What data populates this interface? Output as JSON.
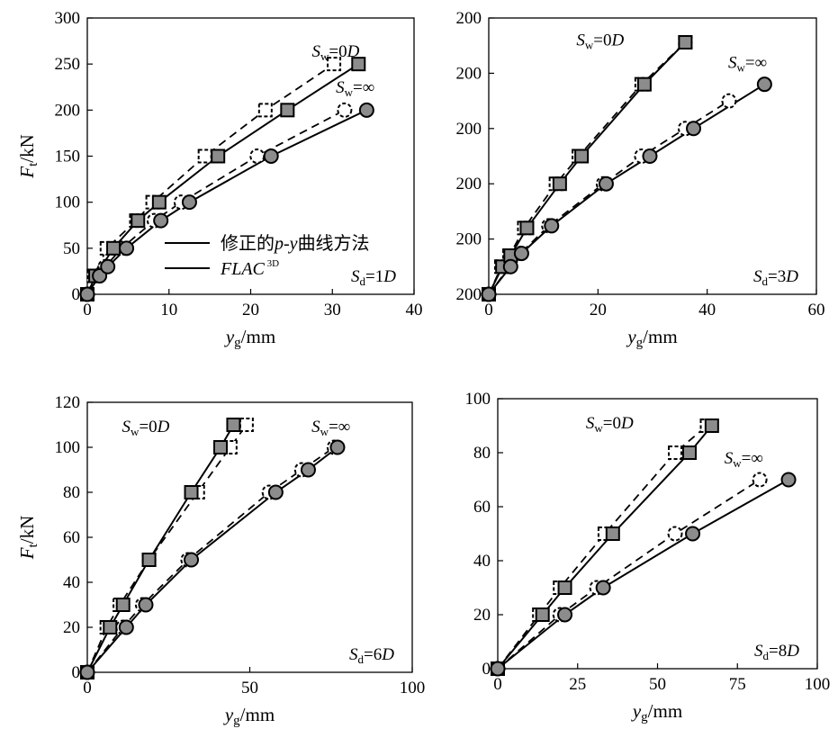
{
  "figure": {
    "legend": {
      "entries": [
        {
          "label": "修正的p-y曲线方法",
          "style": "dashed",
          "marker_fill": "none"
        },
        {
          "label": "FLAC 3D",
          "style": "solid",
          "marker_fill": "#888888"
        }
      ]
    }
  },
  "chart_data": [
    {
      "type": "line",
      "id": "a",
      "xlabel": "yg/mm",
      "ylabel": "Ft/kN",
      "xlim": [
        0,
        40
      ],
      "ylim": [
        0,
        300
      ],
      "xticks": [
        "0",
        "10",
        "20",
        "30",
        "40"
      ],
      "yticks": [
        "0",
        "50",
        "100",
        "150",
        "200",
        "250",
        "300"
      ],
      "condition_label": "Sd=1D",
      "annotations": [
        "Sw=0D",
        "Sw=∞"
      ],
      "series": [
        {
          "group": "Sw=0D",
          "method": "FLAC 3D",
          "marker": "square",
          "dashed": false,
          "x": [
            0,
            1,
            3.2,
            6.2,
            8.8,
            16,
            24.5,
            33.2
          ],
          "y": [
            0,
            20,
            50,
            80,
            100,
            150,
            200,
            250
          ]
        },
        {
          "group": "Sw=0D",
          "method": "修正的p-y曲线方法",
          "marker": "square",
          "dashed": true,
          "x": [
            0,
            0.8,
            2.4,
            6,
            8,
            14.4,
            21.8,
            30.2
          ],
          "y": [
            0,
            20,
            50,
            80,
            100,
            150,
            200,
            250
          ]
        },
        {
          "group": "Sw=∞",
          "method": "FLAC 3D",
          "marker": "circle",
          "dashed": false,
          "x": [
            0,
            1.5,
            2.5,
            4.8,
            9,
            12.5,
            22.5,
            34.2
          ],
          "y": [
            0,
            20,
            30,
            50,
            80,
            100,
            150,
            200
          ]
        },
        {
          "group": "Sw=∞",
          "method": "修正的p-y曲线方法",
          "marker": "circle",
          "dashed": true,
          "x": [
            0,
            1.3,
            2.2,
            4.2,
            8.2,
            11.5,
            20.8,
            31.5
          ],
          "y": [
            0,
            20,
            30,
            50,
            80,
            100,
            150,
            200
          ]
        }
      ]
    },
    {
      "type": "line",
      "id": "b",
      "xlabel": "yg/mm",
      "ylabel": "",
      "xlim": [
        0,
        60
      ],
      "ylim": [
        0,
        250
      ],
      "xticks": [
        "0",
        "20",
        "40",
        "60"
      ],
      "yticks": [
        "200",
        "200",
        "200",
        "200",
        "200",
        "200"
      ],
      "condition_label": "Sd=3D",
      "annotations": [
        "Sw=0D",
        "Sw=∞"
      ],
      "series": [
        {
          "group": "Sw=0D",
          "method": "FLAC 3D",
          "marker": "square",
          "dashed": false,
          "x": [
            0,
            2.5,
            4,
            7,
            13,
            17,
            28.5,
            36
          ],
          "y": [
            0,
            25,
            35,
            60,
            100,
            125,
            190,
            228
          ]
        },
        {
          "group": "Sw=0D",
          "method": "修正的p-y曲线方法",
          "marker": "square",
          "dashed": true,
          "x": [
            0,
            2.3,
            3.8,
            6.5,
            12.3,
            16.5,
            28,
            36
          ],
          "y": [
            0,
            25,
            35,
            60,
            100,
            125,
            190,
            228
          ]
        },
        {
          "group": "Sw=∞",
          "method": "FLAC 3D",
          "marker": "circle",
          "dashed": false,
          "x": [
            0,
            4,
            6,
            11.5,
            21.5,
            29.5,
            37.5,
            50.5
          ],
          "y": [
            0,
            25,
            37,
            62,
            100,
            125,
            150,
            190
          ]
        },
        {
          "group": "Sw=∞",
          "method": "修正的p-y曲线方法",
          "marker": "circle",
          "dashed": true,
          "x": [
            0,
            3.8,
            5.8,
            11,
            21,
            28,
            36,
            44
          ],
          "y": [
            0,
            25,
            37,
            62,
            100,
            125,
            150,
            175
          ]
        }
      ]
    },
    {
      "type": "line",
      "id": "c",
      "xlabel": "yg/mm",
      "ylabel": "Ft/kN",
      "xlim": [
        0,
        100
      ],
      "ylim": [
        0,
        120
      ],
      "xticks": [
        "0",
        "50",
        "100"
      ],
      "yticks": [
        "0",
        "20",
        "40",
        "60",
        "80",
        "100",
        "120"
      ],
      "condition_label": "Sd=6D",
      "annotations": [
        "Sw=0D",
        "Sw=∞"
      ],
      "series": [
        {
          "group": "Sw=0D",
          "method": "FLAC 3D",
          "marker": "square",
          "dashed": false,
          "x": [
            0,
            7,
            11,
            19,
            32,
            41,
            45
          ],
          "y": [
            0,
            20,
            30,
            50,
            80,
            100,
            110
          ]
        },
        {
          "group": "Sw=0D",
          "method": "修正的p-y曲线方法",
          "marker": "square",
          "dashed": true,
          "x": [
            0,
            6,
            10,
            19,
            34,
            44,
            49
          ],
          "y": [
            0,
            20,
            30,
            50,
            80,
            100,
            110
          ]
        },
        {
          "group": "Sw=∞",
          "method": "FLAC 3D",
          "marker": "circle",
          "dashed": false,
          "x": [
            0,
            12,
            18,
            32,
            58,
            68,
            77
          ],
          "y": [
            0,
            20,
            30,
            50,
            80,
            90,
            100
          ]
        },
        {
          "group": "Sw=∞",
          "method": "修正的p-y曲线方法",
          "marker": "circle",
          "dashed": true,
          "x": [
            0,
            11,
            17,
            31,
            56,
            66,
            76
          ],
          "y": [
            0,
            20,
            30,
            50,
            80,
            90,
            100
          ]
        }
      ]
    },
    {
      "type": "line",
      "id": "d",
      "xlabel": "yg/mm",
      "ylabel": "",
      "xlim": [
        0,
        100
      ],
      "ylim": [
        0,
        100
      ],
      "xticks": [
        "0",
        "25",
        "50",
        "75",
        "100"
      ],
      "yticks": [
        "0",
        "20",
        "40",
        "60",
        "80",
        "100"
      ],
      "condition_label": "Sd=8D",
      "annotations": [
        "Sw=0D",
        "Sw=∞"
      ],
      "series": [
        {
          "group": "Sw=0D",
          "method": "FLAC 3D",
          "marker": "square",
          "dashed": false,
          "x": [
            0,
            14,
            21,
            36,
            60,
            67
          ],
          "y": [
            0,
            20,
            30,
            50,
            80,
            90
          ]
        },
        {
          "group": "Sw=0D",
          "method": "修正的p-y曲线方法",
          "marker": "square",
          "dashed": true,
          "x": [
            0,
            13,
            19.5,
            33.5,
            55.5,
            65.5
          ],
          "y": [
            0,
            20,
            30,
            50,
            80,
            90
          ]
        },
        {
          "group": "Sw=∞",
          "method": "FLAC 3D",
          "marker": "circle",
          "dashed": false,
          "x": [
            0,
            21,
            33,
            61,
            91
          ],
          "y": [
            0,
            20,
            30,
            50,
            70
          ]
        },
        {
          "group": "Sw=∞",
          "method": "修正的p-y曲线方法",
          "marker": "circle",
          "dashed": true,
          "x": [
            0,
            19.5,
            31,
            55.5,
            82
          ],
          "y": [
            0,
            20,
            30,
            50,
            70
          ]
        }
      ]
    }
  ]
}
